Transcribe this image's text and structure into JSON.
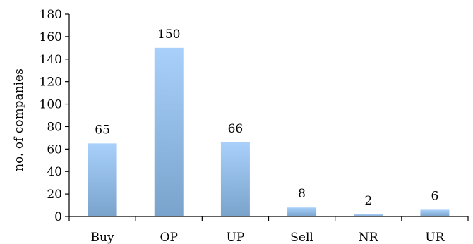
{
  "chart_data": {
    "type": "bar",
    "title": "",
    "xlabel": "",
    "ylabel": "no. of companies",
    "categories": [
      "Buy",
      "OP",
      "UP",
      "Sell",
      "NR",
      "UR"
    ],
    "values": [
      65,
      150,
      66,
      8,
      2,
      6
    ],
    "data_labels": [
      "65",
      "150",
      "66",
      "8",
      "2",
      "6"
    ],
    "ylim": [
      0,
      180
    ],
    "yticks": [
      "0",
      "20",
      "40",
      "60",
      "80",
      "100",
      "120",
      "140",
      "160",
      "180"
    ],
    "grid": false,
    "legend": "none",
    "bar_color_top": "#a8d0fa",
    "bar_color_bottom": "#7aa3cc"
  }
}
